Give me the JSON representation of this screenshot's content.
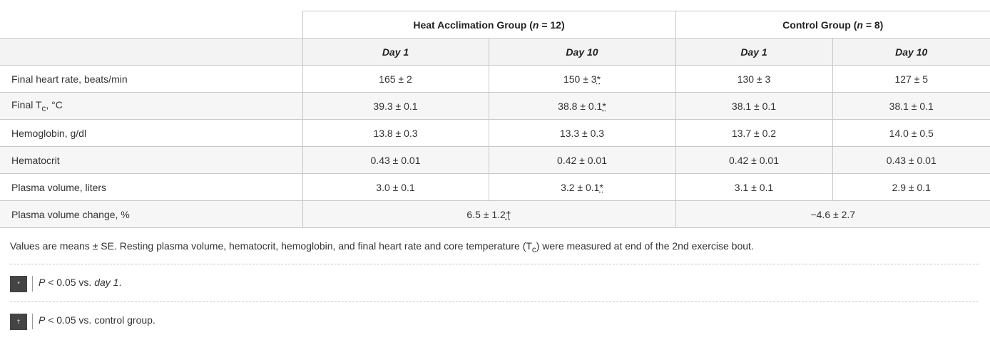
{
  "table": {
    "groups": [
      {
        "label": "Heat Acclimation Group (",
        "n": "n",
        "rest": " = 12)"
      },
      {
        "label": "Control Group (",
        "n": "n",
        "rest": " = 8)"
      }
    ],
    "days": [
      "Day 1",
      "Day 10",
      "Day 1",
      "Day 10"
    ],
    "rows": [
      {
        "label": "Final heart rate, beats/min",
        "cells": [
          "165 ± 2",
          "150 ± 3",
          "130 ± 3",
          "127 ± 5"
        ],
        "marks": [
          "",
          "*",
          "",
          ""
        ]
      },
      {
        "label_pre": "Final T",
        "label_sub": "c",
        "label_post": ", °C",
        "cells": [
          "39.3 ± 0.1",
          "38.8 ± 0.1",
          "38.1 ± 0.1",
          "38.1 ± 0.1"
        ],
        "marks": [
          "",
          "*",
          "",
          ""
        ]
      },
      {
        "label": "Hemoglobin, g/dl",
        "cells": [
          "13.8 ± 0.3",
          "13.3 ± 0.3",
          "13.7 ± 0.2",
          "14.0 ± 0.5"
        ],
        "marks": [
          "",
          "",
          "",
          ""
        ]
      },
      {
        "label": "Hematocrit",
        "cells": [
          "0.43 ± 0.01",
          "0.42 ± 0.01",
          "0.42 ± 0.01",
          "0.43 ± 0.01"
        ],
        "marks": [
          "",
          "",
          "",
          ""
        ]
      },
      {
        "label": "Plasma volume, liters",
        "cells": [
          "3.0 ± 0.1",
          "3.2 ± 0.1",
          "3.1 ± 0.1",
          "2.9 ± 0.1"
        ],
        "marks": [
          "",
          "*",
          "",
          ""
        ]
      },
      {
        "label": "Plasma volume change, %",
        "span_cells": [
          "6.5 ± 1.2",
          "−4.6 ± 2.7"
        ],
        "span_marks": [
          "†",
          ""
        ]
      }
    ]
  },
  "note": {
    "pre": "Values are means ± SE. Resting plasma volume, hematocrit, hemoglobin, and final heart rate and core temperature (T",
    "sub": "c",
    "post": ") were measured at end of the 2nd exercise bout."
  },
  "footnotes": [
    {
      "mark": "*",
      "p": "P",
      "text_pre": " < 0.05 vs. ",
      "text_em": "day 1",
      "text_post": "."
    },
    {
      "mark": "†",
      "p": "P",
      "text_pre": " < 0.05 vs. control group.",
      "text_em": "",
      "text_post": ""
    }
  ]
}
